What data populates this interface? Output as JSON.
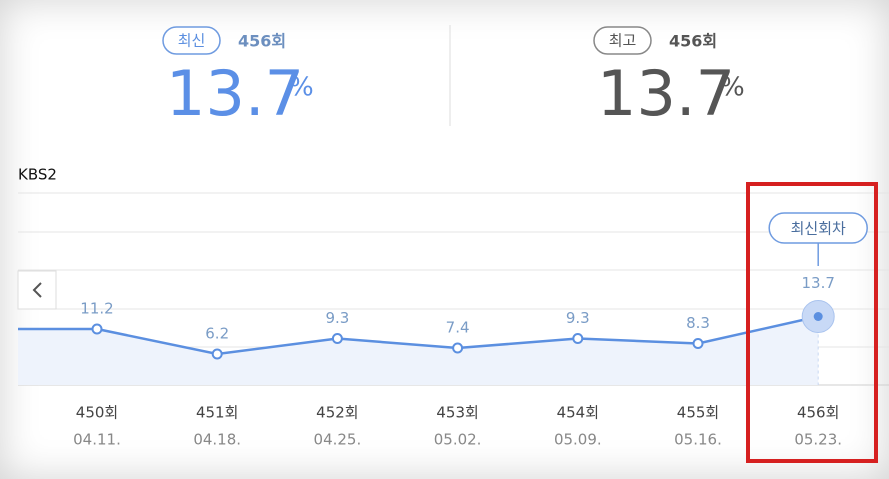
{
  "summary": {
    "latest": {
      "badge": "최신",
      "episode": "456회",
      "value": 13.7,
      "unit": "%"
    },
    "best": {
      "badge": "최고",
      "episode": "456회",
      "value": 13.7,
      "unit": "%"
    }
  },
  "chart_data": {
    "type": "line",
    "title": "KBS2",
    "categories": [
      "450회",
      "451회",
      "452회",
      "453회",
      "454회",
      "455회",
      "456회"
    ],
    "dates": [
      "04.11.",
      "04.18.",
      "04.25.",
      "05.02.",
      "05.09.",
      "05.16.",
      "05.23."
    ],
    "values": [
      11.2,
      6.2,
      9.3,
      7.4,
      9.3,
      8.3,
      13.7
    ],
    "color": "#5b8fe0",
    "ylim": [
      0,
      38.4
    ],
    "annotation": "최신회차"
  }
}
